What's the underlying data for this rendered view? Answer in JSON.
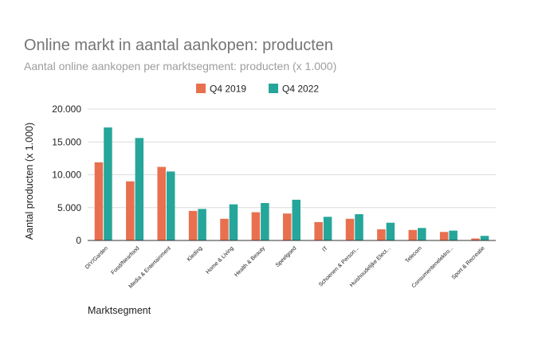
{
  "chart_data": {
    "type": "bar",
    "title": "Online markt in aantal aankopen: producten",
    "subtitle": "Aantal online aankopen per marktsegment: producten (x 1.000)",
    "xlabel": "Marktsegment",
    "ylabel": "Aantal producten (x 1.000)",
    "ylim": [
      0,
      20000
    ],
    "yticks": [
      0,
      5000,
      10000,
      15000,
      20000
    ],
    "ytick_labels": [
      "0",
      "5.000",
      "10.000",
      "15.000",
      "20.000"
    ],
    "grid": true,
    "legend_position": "top",
    "categories": [
      "DIY/Garden",
      "Food/Nearfood",
      "Media & Entertainment",
      "Kleding",
      "Home & Living",
      "Health & Beauty",
      "Speelgoed",
      "IT",
      "Schoenen & Person...",
      "Huishoudelijke Elect...",
      "Telecom",
      "Consumentenelektro...",
      "Sport & Recreatie"
    ],
    "series": [
      {
        "name": "Q4 2019",
        "color": "#e8704f",
        "values": [
          11900,
          9000,
          11200,
          4500,
          3300,
          4300,
          4100,
          2800,
          3300,
          1700,
          1600,
          1300,
          300
        ]
      },
      {
        "name": "Q4 2022",
        "color": "#26a69a",
        "values": [
          17200,
          15600,
          10500,
          4800,
          5500,
          5700,
          6200,
          3600,
          4000,
          2700,
          1900,
          1500,
          700
        ]
      }
    ]
  }
}
